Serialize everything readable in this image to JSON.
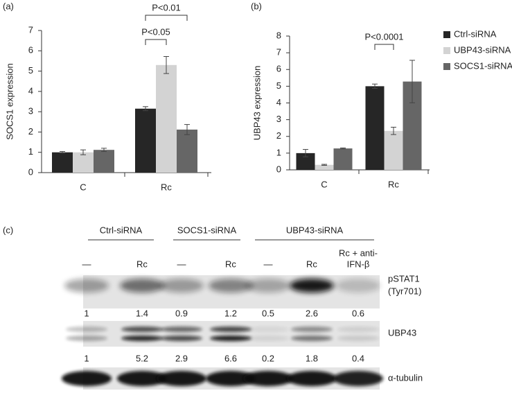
{
  "chart_data": [
    {
      "type": "bar",
      "panel": "(a)",
      "y_label": "SOCS1 expression",
      "categories": [
        "C",
        "Rc"
      ],
      "series": [
        {
          "color": "#262626",
          "values": [
            1.0,
            3.15
          ],
          "errors": [
            0.04,
            0.1
          ]
        },
        {
          "color": "#d3d3d3",
          "values": [
            1.0,
            5.3
          ],
          "errors": [
            0.12,
            0.42
          ]
        },
        {
          "color": "#666666",
          "values": [
            1.12,
            2.12
          ],
          "errors": [
            0.08,
            0.25
          ]
        }
      ],
      "ylim": [
        0,
        7
      ],
      "yticks": [
        0,
        1,
        2,
        3,
        4,
        5,
        6,
        7
      ],
      "annotations": [
        "P<0.05",
        "P<0.01"
      ]
    },
    {
      "type": "bar",
      "panel": "(b)",
      "y_label": "UBP43 expression",
      "categories": [
        "C",
        "Rc"
      ],
      "series": [
        {
          "name": "Ctrl-siRNA",
          "color": "#262626",
          "values": [
            1.0,
            5.0
          ],
          "errors": [
            0.22,
            0.13
          ]
        },
        {
          "name": "UBP43-siRNA",
          "color": "#d3d3d3",
          "values": [
            0.3,
            2.33
          ],
          "errors": [
            0.03,
            0.22
          ]
        },
        {
          "name": "SOCS1-siRNA",
          "color": "#666666",
          "values": [
            1.28,
            5.28
          ],
          "errors": [
            0.03,
            1.27
          ]
        }
      ],
      "ylim": [
        0,
        8
      ],
      "yticks": [
        0,
        1,
        2,
        3,
        4,
        5,
        6,
        7,
        8
      ],
      "annotations": [
        "P<0.0001"
      ],
      "legend": "right"
    }
  ],
  "blot": {
    "panel": "(c)",
    "groups": [
      "Ctrl-siRNA",
      "SOCS1-siRNA",
      "UBP43-siRNA"
    ],
    "lanes": [
      [
        "—"
      ],
      [
        "Rc"
      ],
      [
        "—"
      ],
      [
        "Rc"
      ],
      [
        "—"
      ],
      [
        "Rc"
      ],
      [
        "Rc + anti-",
        "IFN-β"
      ]
    ],
    "rows": [
      {
        "label": [
          "pSTAT1",
          "(Tyr701)"
        ],
        "quant": [
          1,
          1.4,
          0.9,
          1.2,
          0.5,
          2.6,
          0.6
        ]
      },
      {
        "label": [
          "UBP43"
        ],
        "quant": [
          1,
          5.2,
          2.9,
          6.6,
          0.2,
          1.8,
          0.4
        ]
      },
      {
        "label": [
          "α-tubulin"
        ]
      }
    ]
  }
}
